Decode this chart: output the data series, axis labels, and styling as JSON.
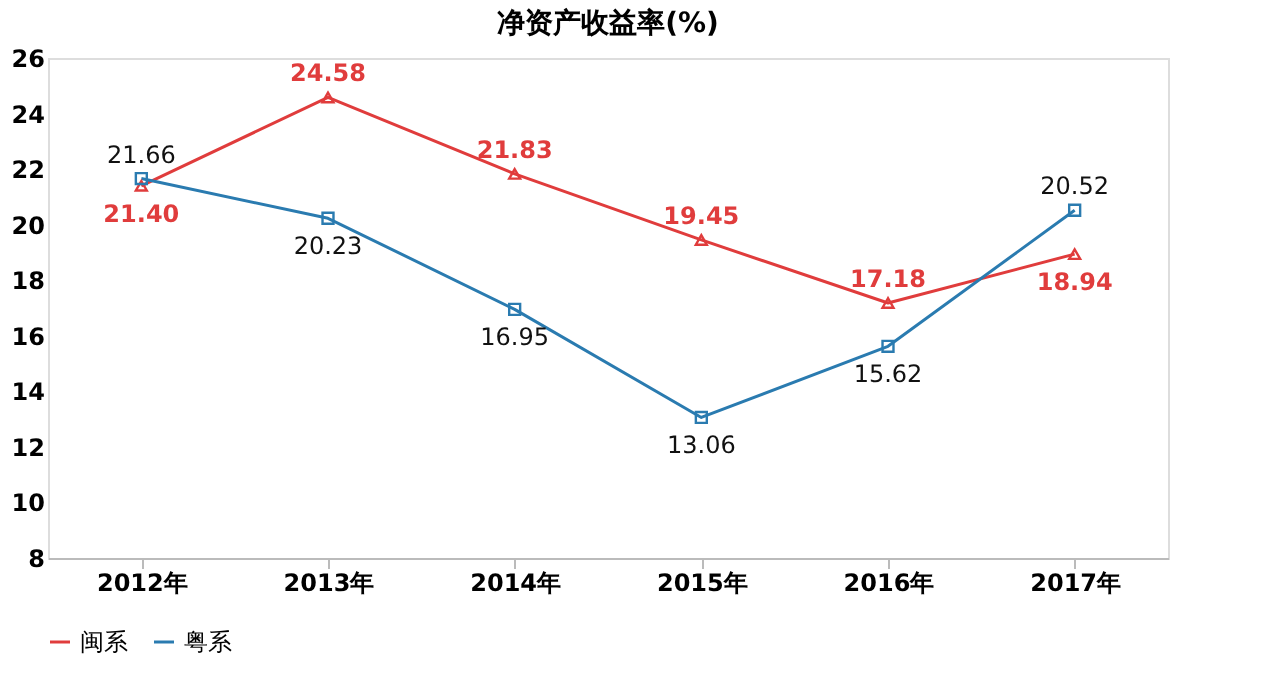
{
  "chart_data": {
    "type": "line",
    "title": "净资产收益率(%)",
    "categories": [
      "2012年",
      "2013年",
      "2014年",
      "2015年",
      "2016年",
      "2017年"
    ],
    "series": [
      {
        "name": "闽系",
        "color": "#e03c3c",
        "marker": "triangle",
        "values": [
          21.4,
          24.58,
          21.83,
          19.45,
          17.18,
          18.94
        ],
        "value_labels": [
          "21.40",
          "24.58",
          "21.83",
          "19.45",
          "17.18",
          "18.94"
        ]
      },
      {
        "name": "粤系",
        "color": "#2a7bb0",
        "marker": "square",
        "values": [
          21.66,
          20.23,
          16.95,
          13.06,
          15.62,
          20.52
        ],
        "value_labels": [
          "21.66",
          "20.23",
          "16.95",
          "13.06",
          "15.62",
          "20.52"
        ]
      }
    ],
    "ylim": [
      8,
      26
    ],
    "yticks": [
      8,
      10,
      12,
      14,
      16,
      18,
      20,
      22,
      24,
      26
    ],
    "grid": false,
    "legend": "bottom",
    "data_labels": true,
    "line_style": "solid"
  }
}
